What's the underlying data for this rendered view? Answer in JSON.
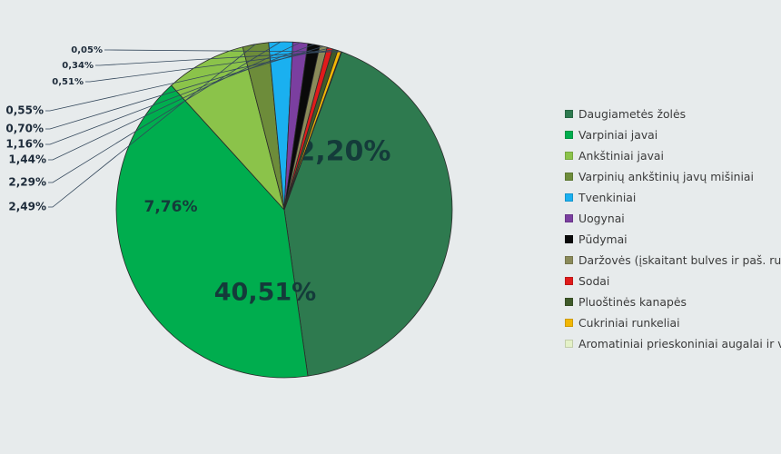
{
  "chart_data": {
    "type": "pie",
    "title": "",
    "start_angle_deg": 20,
    "slices": [
      {
        "label": "Daugiametės žolės",
        "value": 42.2,
        "display": "42,20%",
        "color": "#2e7a4f"
      },
      {
        "label": "Varpiniai javai",
        "value": 40.51,
        "display": "40,51%",
        "color": "#00ad4e"
      },
      {
        "label": "Ankštiniai javai",
        "value": 7.76,
        "display": "7,76%",
        "color": "#8bc34a"
      },
      {
        "label": "Varpinių ankštinių javų mišiniai",
        "value": 2.49,
        "display": "2,49%",
        "color": "#6d8c3a"
      },
      {
        "label": "Tvenkiniai",
        "value": 2.29,
        "display": "2,29%",
        "color": "#1ab0f0"
      },
      {
        "label": "Uogynai",
        "value": 1.44,
        "display": "1,44%",
        "color": "#7b3fa0"
      },
      {
        "label": "Pūdymai",
        "value": 1.16,
        "display": "1,16%",
        "color": "#0a0a0a"
      },
      {
        "label": "Daržovės (įskaitant bulves ir paš. runkelius)",
        "value": 0.7,
        "display": "0,70%",
        "color": "#8a8a5a"
      },
      {
        "label": "Sodai",
        "value": 0.55,
        "display": "0,55%",
        "color": "#e01b1b"
      },
      {
        "label": "Pluoštinės kanapės",
        "value": 0.51,
        "display": "0,51%",
        "color": "#3f5a2a"
      },
      {
        "label": "Cukriniai runkeliai",
        "value": 0.34,
        "display": "0,34%",
        "color": "#f2b705"
      },
      {
        "label": "Aromatiniai prieskoniniai augalai ir vaistažolės",
        "value": 0.05,
        "display": "0,05%",
        "color": "#e4f1c8"
      }
    ],
    "legend_position": "right"
  }
}
